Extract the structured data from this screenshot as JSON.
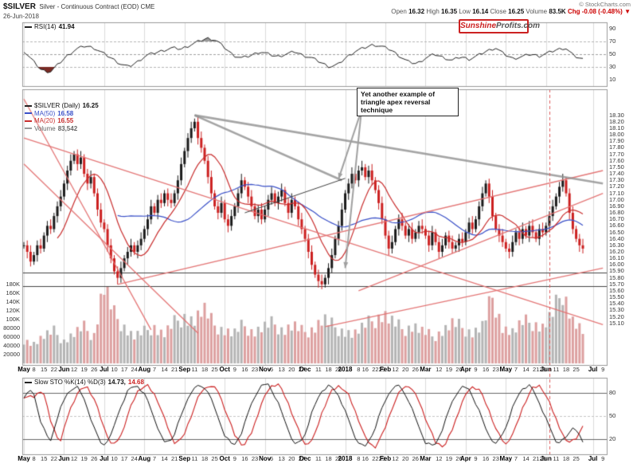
{
  "header": {
    "symbol": "$SILVER",
    "description": "Silver - Continuous Contract (EOD) CME",
    "date": "26-Jun-2018",
    "copyright": "© StockCharts.com",
    "quote": {
      "open_label": "Open",
      "open": "16.32",
      "high_label": "High",
      "high": "16.35",
      "low_label": "Low",
      "low": "16.14",
      "close_label": "Close",
      "close": "16.25",
      "volume_label": "Volume",
      "volume": "83.5K",
      "change": "Chg -0.08 (-0.48%)",
      "change_arrow": "▼"
    }
  },
  "logo": {
    "part1": "Sunshine",
    "part2": "Profits.com"
  },
  "annotation": {
    "text": "Yet another example of triangle apex reversal technique"
  },
  "legend": {
    "rsi_label": "RSI(14)",
    "rsi_value": "41.94",
    "main_rows": [
      {
        "label": "$SILVER (Daily)",
        "value": "16.25"
      },
      {
        "label": "MA(50)",
        "value": "16.58"
      },
      {
        "label": "MA(20)",
        "value": "16.55"
      },
      {
        "label": "Volume",
        "value": "83,542"
      }
    ],
    "sto_label": "Slow STO %K(14) %D(3)",
    "sto_k": "14.73,",
    "sto_d": "14.68"
  },
  "colors": {
    "candle_up": "#1a1a1a",
    "candle_down": "#cc2020",
    "ma20": "#c92d2d",
    "ma50": "#3a50c8",
    "volume_up": "#b4b4b4",
    "volume_down": "#dda0a0",
    "trend_pink": "#e37070",
    "trend_gray": "#8f8f8f",
    "trend_black": "#404040",
    "level_line": "#444444",
    "vline_dashed": "#e05c5c",
    "rsi_line": "#222222",
    "rsi_over_fill": "#9a9a9a",
    "rsi_under_fill": "#7a2a24",
    "sto_k": "#111111",
    "sto_d": "#cc2020",
    "grid": "#dcdcdc",
    "panel_border": "#999999",
    "logo_red": "#cc2222",
    "accent_red": "#cc0000"
  },
  "chart_data": {
    "type": "candlestick",
    "title": "$SILVER Silver - Continuous Contract (EOD) CME, daily, May 2017 - Jun 2018",
    "price_axis": {
      "max": 18.3,
      "min": 15.1,
      "step": 0.1
    },
    "price_top": 18.7,
    "closes": [
      16.3,
      16.2,
      16.05,
      16.15,
      16.3,
      16.25,
      16.45,
      16.6,
      16.55,
      16.75,
      16.9,
      17.05,
      17.25,
      17.45,
      17.6,
      17.7,
      17.55,
      17.65,
      17.4,
      17.25,
      17.35,
      17.1,
      16.85,
      16.65,
      16.55,
      16.3,
      16.1,
      15.9,
      15.8,
      15.95,
      16.1,
      16.2,
      16.3,
      16.2,
      16.3,
      16.4,
      16.55,
      16.7,
      16.9,
      16.8,
      17.0,
      16.95,
      17.1,
      17.0,
      16.95,
      17.1,
      17.3,
      17.55,
      17.75,
      17.95,
      18.1,
      18.2,
      17.95,
      17.8,
      17.6,
      17.35,
      17.1,
      16.9,
      16.8,
      16.95,
      16.7,
      16.6,
      16.75,
      16.9,
      17.1,
      17.3,
      17.2,
      17.05,
      16.9,
      16.75,
      16.85,
      16.7,
      16.85,
      17.0,
      17.1,
      16.95,
      17.05,
      17.15,
      16.95,
      16.8,
      17.0,
      16.9,
      16.7,
      16.55,
      16.4,
      16.2,
      16.0,
      15.85,
      15.75,
      15.7,
      15.8,
      15.95,
      16.15,
      16.4,
      16.6,
      16.85,
      17.1,
      17.25,
      17.4,
      17.3,
      17.45,
      17.5,
      17.35,
      17.45,
      17.3,
      17.15,
      16.95,
      16.7,
      16.45,
      16.25,
      16.35,
      16.55,
      16.7,
      16.6,
      16.45,
      16.55,
      16.4,
      16.5,
      16.6,
      16.55,
      16.45,
      16.3,
      16.5,
      16.35,
      16.2,
      16.3,
      16.45,
      16.35,
      16.25,
      16.3,
      16.4,
      16.35,
      16.5,
      16.65,
      16.55,
      16.7,
      16.9,
      17.1,
      17.25,
      17.05,
      16.75,
      16.55,
      16.45,
      16.35,
      16.25,
      16.2,
      16.35,
      16.5,
      16.4,
      16.55,
      16.45,
      16.6,
      16.5,
      16.4,
      16.55,
      16.5,
      16.6,
      16.75,
      16.9,
      17.05,
      17.2,
      17.3,
      17.1,
      16.8,
      16.55,
      16.4,
      16.3,
      16.25
    ],
    "volume_keypoints_k": [
      55,
      45,
      60,
      70,
      50,
      65,
      80,
      60,
      175,
      110,
      85,
      60,
      70,
      85,
      65,
      90,
      110,
      95,
      120,
      85,
      75,
      65,
      85,
      70,
      80,
      90,
      75,
      85,
      70,
      80,
      100,
      85,
      75,
      65,
      80,
      95,
      110,
      90,
      75,
      85,
      70,
      60,
      75,
      90,
      80,
      70,
      85,
      155,
      80,
      70,
      90,
      90,
      80,
      110,
      165,
      95,
      70
    ],
    "volume_axis": [
      [
        "180K",
        180
      ],
      [
        "160K",
        160
      ],
      [
        "140K",
        140
      ],
      [
        "120K",
        120
      ],
      [
        "100K",
        100
      ],
      [
        "80000",
        80
      ],
      [
        "60000",
        60
      ],
      [
        "40000",
        40
      ],
      [
        "20000",
        20
      ]
    ],
    "rsi": {
      "axis_ticks": [
        90,
        70,
        50,
        30,
        10
      ],
      "overbought": 70,
      "midline": 50,
      "oversold": 30,
      "current": 41.94,
      "keypoints": [
        55,
        40,
        25,
        22,
        35,
        48,
        58,
        63,
        60,
        52,
        44,
        35,
        30,
        38,
        48,
        52,
        56,
        60,
        58,
        64,
        70,
        75,
        72,
        60,
        48,
        44,
        48,
        54,
        50,
        46,
        50,
        54,
        48,
        44,
        37,
        30,
        34,
        46,
        55,
        60,
        65,
        62,
        57,
        47,
        38,
        35,
        44,
        50,
        45,
        40,
        46,
        42,
        48,
        55,
        60,
        50,
        43,
        46,
        50,
        47,
        52,
        57,
        60,
        47,
        42
      ]
    },
    "sto": {
      "axis_ticks": [
        80,
        50,
        20
      ],
      "upper": 80,
      "lower": 20,
      "current_k": 14.73,
      "current_d": 14.68,
      "keypoints": [
        75,
        85,
        40,
        15,
        55,
        80,
        90,
        70,
        35,
        10,
        25,
        60,
        85,
        90,
        75,
        45,
        15,
        20,
        50,
        80,
        90,
        85,
        55,
        25,
        10,
        30,
        65,
        88,
        92,
        70,
        40,
        12,
        20,
        55,
        82,
        90,
        78,
        50,
        20,
        8,
        28,
        60,
        85,
        90,
        72,
        42,
        15,
        10,
        35,
        68,
        88,
        85,
        60,
        30,
        12,
        30,
        62,
        86,
        90,
        68,
        40,
        15,
        20,
        38,
        15
      ]
    },
    "x_ticks": [
      [
        "May",
        0,
        1
      ],
      [
        "8",
        3,
        0
      ],
      [
        "15",
        6,
        0
      ],
      [
        "22",
        9,
        0
      ],
      [
        "Jun",
        12,
        1
      ],
      [
        "12",
        15,
        0
      ],
      [
        "19",
        18,
        0
      ],
      [
        "26",
        21,
        0
      ],
      [
        "Jul",
        24,
        1
      ],
      [
        "10",
        27,
        0
      ],
      [
        "17",
        30,
        0
      ],
      [
        "24",
        33,
        0
      ],
      [
        "Aug",
        36,
        1
      ],
      [
        "7",
        39,
        0
      ],
      [
        "14",
        42,
        0
      ],
      [
        "21",
        45,
        0
      ],
      [
        "Sep",
        48,
        1
      ],
      [
        "11",
        51,
        0
      ],
      [
        "18",
        54,
        0
      ],
      [
        "25",
        57,
        0
      ],
      [
        "Oct",
        60,
        1
      ],
      [
        "9",
        63,
        0
      ],
      [
        "16",
        66,
        0
      ],
      [
        "23",
        69,
        0
      ],
      [
        "Nov",
        72,
        1
      ],
      [
        "6",
        74,
        0
      ],
      [
        "13",
        77,
        0
      ],
      [
        "20",
        80,
        0
      ],
      [
        "27",
        83,
        0
      ],
      [
        "Dec",
        84,
        1
      ],
      [
        "11",
        88,
        0
      ],
      [
        "18",
        91,
        0
      ],
      [
        "26",
        94,
        0
      ],
      [
        "2018",
        96,
        1
      ],
      [
        "8",
        100,
        0
      ],
      [
        "16",
        102,
        0
      ],
      [
        "22",
        105,
        0
      ],
      [
        "29",
        107,
        0
      ],
      [
        "Feb",
        108,
        1
      ],
      [
        "12",
        111,
        0
      ],
      [
        "20",
        114,
        0
      ],
      [
        "26",
        117,
        0
      ],
      [
        "Mar",
        120,
        1
      ],
      [
        "12",
        124,
        0
      ],
      [
        "19",
        127,
        0
      ],
      [
        "26",
        130,
        0
      ],
      [
        "Apr",
        132,
        1
      ],
      [
        "9",
        135,
        0
      ],
      [
        "16",
        138,
        0
      ],
      [
        "23",
        141,
        0
      ],
      [
        "May",
        144,
        1
      ],
      [
        "7",
        147,
        0
      ],
      [
        "14",
        150,
        0
      ],
      [
        "21",
        153,
        0
      ],
      [
        "29",
        155,
        0
      ],
      [
        "Jun",
        156,
        1
      ],
      [
        "11",
        159,
        0
      ],
      [
        "18",
        162,
        0
      ],
      [
        "25",
        165,
        0
      ],
      [
        "Jul",
        170,
        1
      ],
      [
        "9",
        173,
        0
      ]
    ],
    "hlines": [
      15.88,
      15.67
    ],
    "vline_index": 157,
    "ma20_window": 11,
    "ma50_window": 29,
    "trendlines": [
      {
        "kind": "pink",
        "a": [
          0,
          18.55
        ],
        "b": [
          38,
          15.0
        ]
      },
      {
        "kind": "pink",
        "a": [
          0,
          17.55
        ],
        "b": [
          52,
          14.95
        ]
      },
      {
        "kind": "pink",
        "a": [
          0,
          17.95
        ],
        "b": [
          173,
          15.08
        ]
      },
      {
        "kind": "pink",
        "a": [
          28,
          15.7
        ],
        "b": [
          173,
          17.45
        ]
      },
      {
        "kind": "pink",
        "a": [
          100,
          15.6
        ],
        "b": [
          173,
          17.1
        ]
      },
      {
        "kind": "pink",
        "a": [
          90,
          15.05
        ],
        "b": [
          173,
          15.95
        ]
      },
      {
        "kind": "gray",
        "a": [
          51,
          18.3
        ],
        "b": [
          173,
          17.25
        ]
      },
      {
        "kind": "gray",
        "a": [
          51,
          18.3
        ],
        "b": [
          95,
          17.3
        ]
      },
      {
        "kind": "black",
        "a": [
          66,
          16.8
        ],
        "b": [
          96,
          17.33
        ]
      }
    ],
    "arrows": [
      {
        "to": [
          94,
          17.32
        ]
      },
      {
        "to": [
          96,
          15.95
        ]
      }
    ]
  }
}
